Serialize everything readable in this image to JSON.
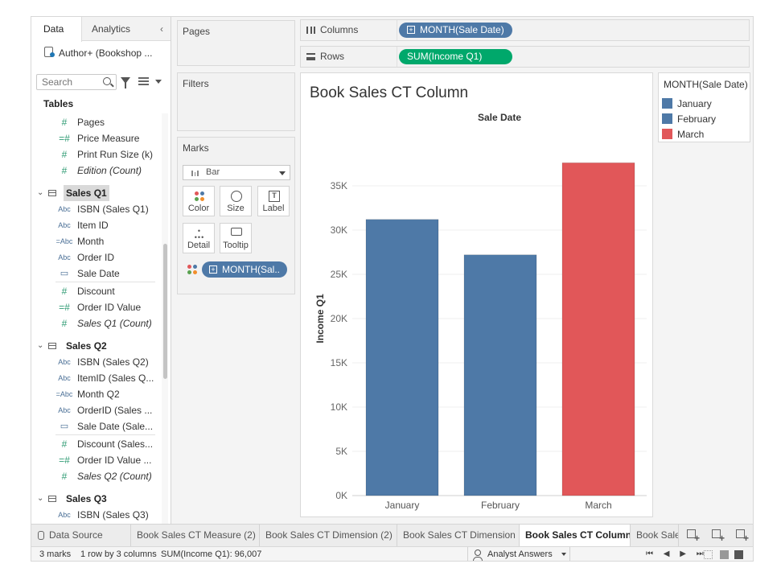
{
  "datapane": {
    "tab_data": "Data",
    "tab_analytics": "Analytics",
    "collapse_icon": "‹",
    "datasource": "Author+ (Bookshop ...",
    "search_placeholder": "Search",
    "tables_label": "Tables",
    "rows": [
      {
        "type": "measure",
        "icon": "#",
        "label": "Pages"
      },
      {
        "type": "measure-calc",
        "icon": "=#",
        "label": "Price Measure"
      },
      {
        "type": "measure",
        "icon": "#",
        "label": "Print Run Size (k)"
      },
      {
        "type": "measure",
        "icon": "#",
        "label": "Edition (Count)",
        "italic": true
      },
      {
        "type": "table",
        "label": "Sales Q1",
        "highlight": true
      },
      {
        "type": "dim",
        "icon": "Abc",
        "label": "ISBN (Sales Q1)"
      },
      {
        "type": "dim",
        "icon": "Abc",
        "label": "Item ID"
      },
      {
        "type": "dim-calc",
        "icon": "=Abc",
        "label": "Month"
      },
      {
        "type": "dim",
        "icon": "Abc",
        "label": "Order ID"
      },
      {
        "type": "date",
        "icon": "▭",
        "label": "Sale Date"
      },
      {
        "type": "measure",
        "icon": "#",
        "label": "Discount"
      },
      {
        "type": "measure-calc",
        "icon": "=#",
        "label": "Order ID Value"
      },
      {
        "type": "measure",
        "icon": "#",
        "label": "Sales Q1 (Count)",
        "italic": true
      },
      {
        "type": "table",
        "label": "Sales Q2"
      },
      {
        "type": "dim",
        "icon": "Abc",
        "label": "ISBN (Sales Q2)"
      },
      {
        "type": "dim",
        "icon": "Abc",
        "label": "ItemID (Sales Q..."
      },
      {
        "type": "dim-calc",
        "icon": "=Abc",
        "label": "Month Q2"
      },
      {
        "type": "dim",
        "icon": "Abc",
        "label": "OrderID (Sales ..."
      },
      {
        "type": "date",
        "icon": "▭",
        "label": "Sale Date (Sale..."
      },
      {
        "type": "measure",
        "icon": "#",
        "label": "Discount (Sales..."
      },
      {
        "type": "measure-calc",
        "icon": "=#",
        "label": "Order ID Value ..."
      },
      {
        "type": "measure",
        "icon": "#",
        "label": "Sales Q2 (Count)",
        "italic": true
      },
      {
        "type": "table",
        "label": "Sales Q3"
      },
      {
        "type": "dim",
        "icon": "Abc",
        "label": "ISBN (Sales Q3)"
      }
    ]
  },
  "cards": {
    "pages": "Pages",
    "filters": "Filters",
    "marks": "Marks",
    "mark_type": "Bar",
    "buttons": {
      "color": "Color",
      "size": "Size",
      "label": "Label",
      "detail": "Detail",
      "tooltip": "Tooltip"
    },
    "mark_field": "MONTH(Sal.."
  },
  "shelves": {
    "columns_label": "Columns",
    "columns_pill": "MONTH(Sale Date)",
    "rows_label": "Rows",
    "rows_pill": "SUM(Income Q1)"
  },
  "view": {
    "title": "Book Sales CT Column"
  },
  "legend": {
    "title": "MONTH(Sale Date)",
    "items": [
      {
        "label": "January",
        "color": "#4e79a7"
      },
      {
        "label": "February",
        "color": "#4e79a7"
      },
      {
        "label": "March",
        "color": "#e15759"
      }
    ]
  },
  "chart_data": {
    "type": "bar",
    "title": "Sale Date",
    "ylabel": "Income Q1",
    "categories": [
      "January",
      "February",
      "March"
    ],
    "values": [
      31200,
      27200,
      37600
    ],
    "colors": [
      "#4e79a7",
      "#4e79a7",
      "#e15759"
    ],
    "ylim": [
      0,
      40000
    ],
    "yticks": [
      0,
      5000,
      10000,
      15000,
      20000,
      25000,
      30000,
      35000
    ],
    "ytick_labels": [
      "0K",
      "5K",
      "10K",
      "15K",
      "20K",
      "25K",
      "30K",
      "35K"
    ],
    "grid": true
  },
  "sheets": {
    "tabs": [
      {
        "label": "Data Source",
        "kind": "ds"
      },
      {
        "label": "Book Sales CT Measure (2)"
      },
      {
        "label": "Book Sales CT Dimension (2)"
      },
      {
        "label": "Book Sales CT Dimension"
      },
      {
        "label": "Book Sales CT Column",
        "active": true
      },
      {
        "label": "Book Sales"
      }
    ],
    "new_icons": [
      "new-worksheet-icon",
      "new-dashboard-icon",
      "new-story-icon"
    ]
  },
  "status": {
    "marks": "3 marks",
    "rowscols": "1 row by 3 columns",
    "sum": "SUM(Income Q1): 96,007",
    "analyst": "Analyst Answers",
    "nav": "⏮ ◀ ▶ ⏭"
  }
}
